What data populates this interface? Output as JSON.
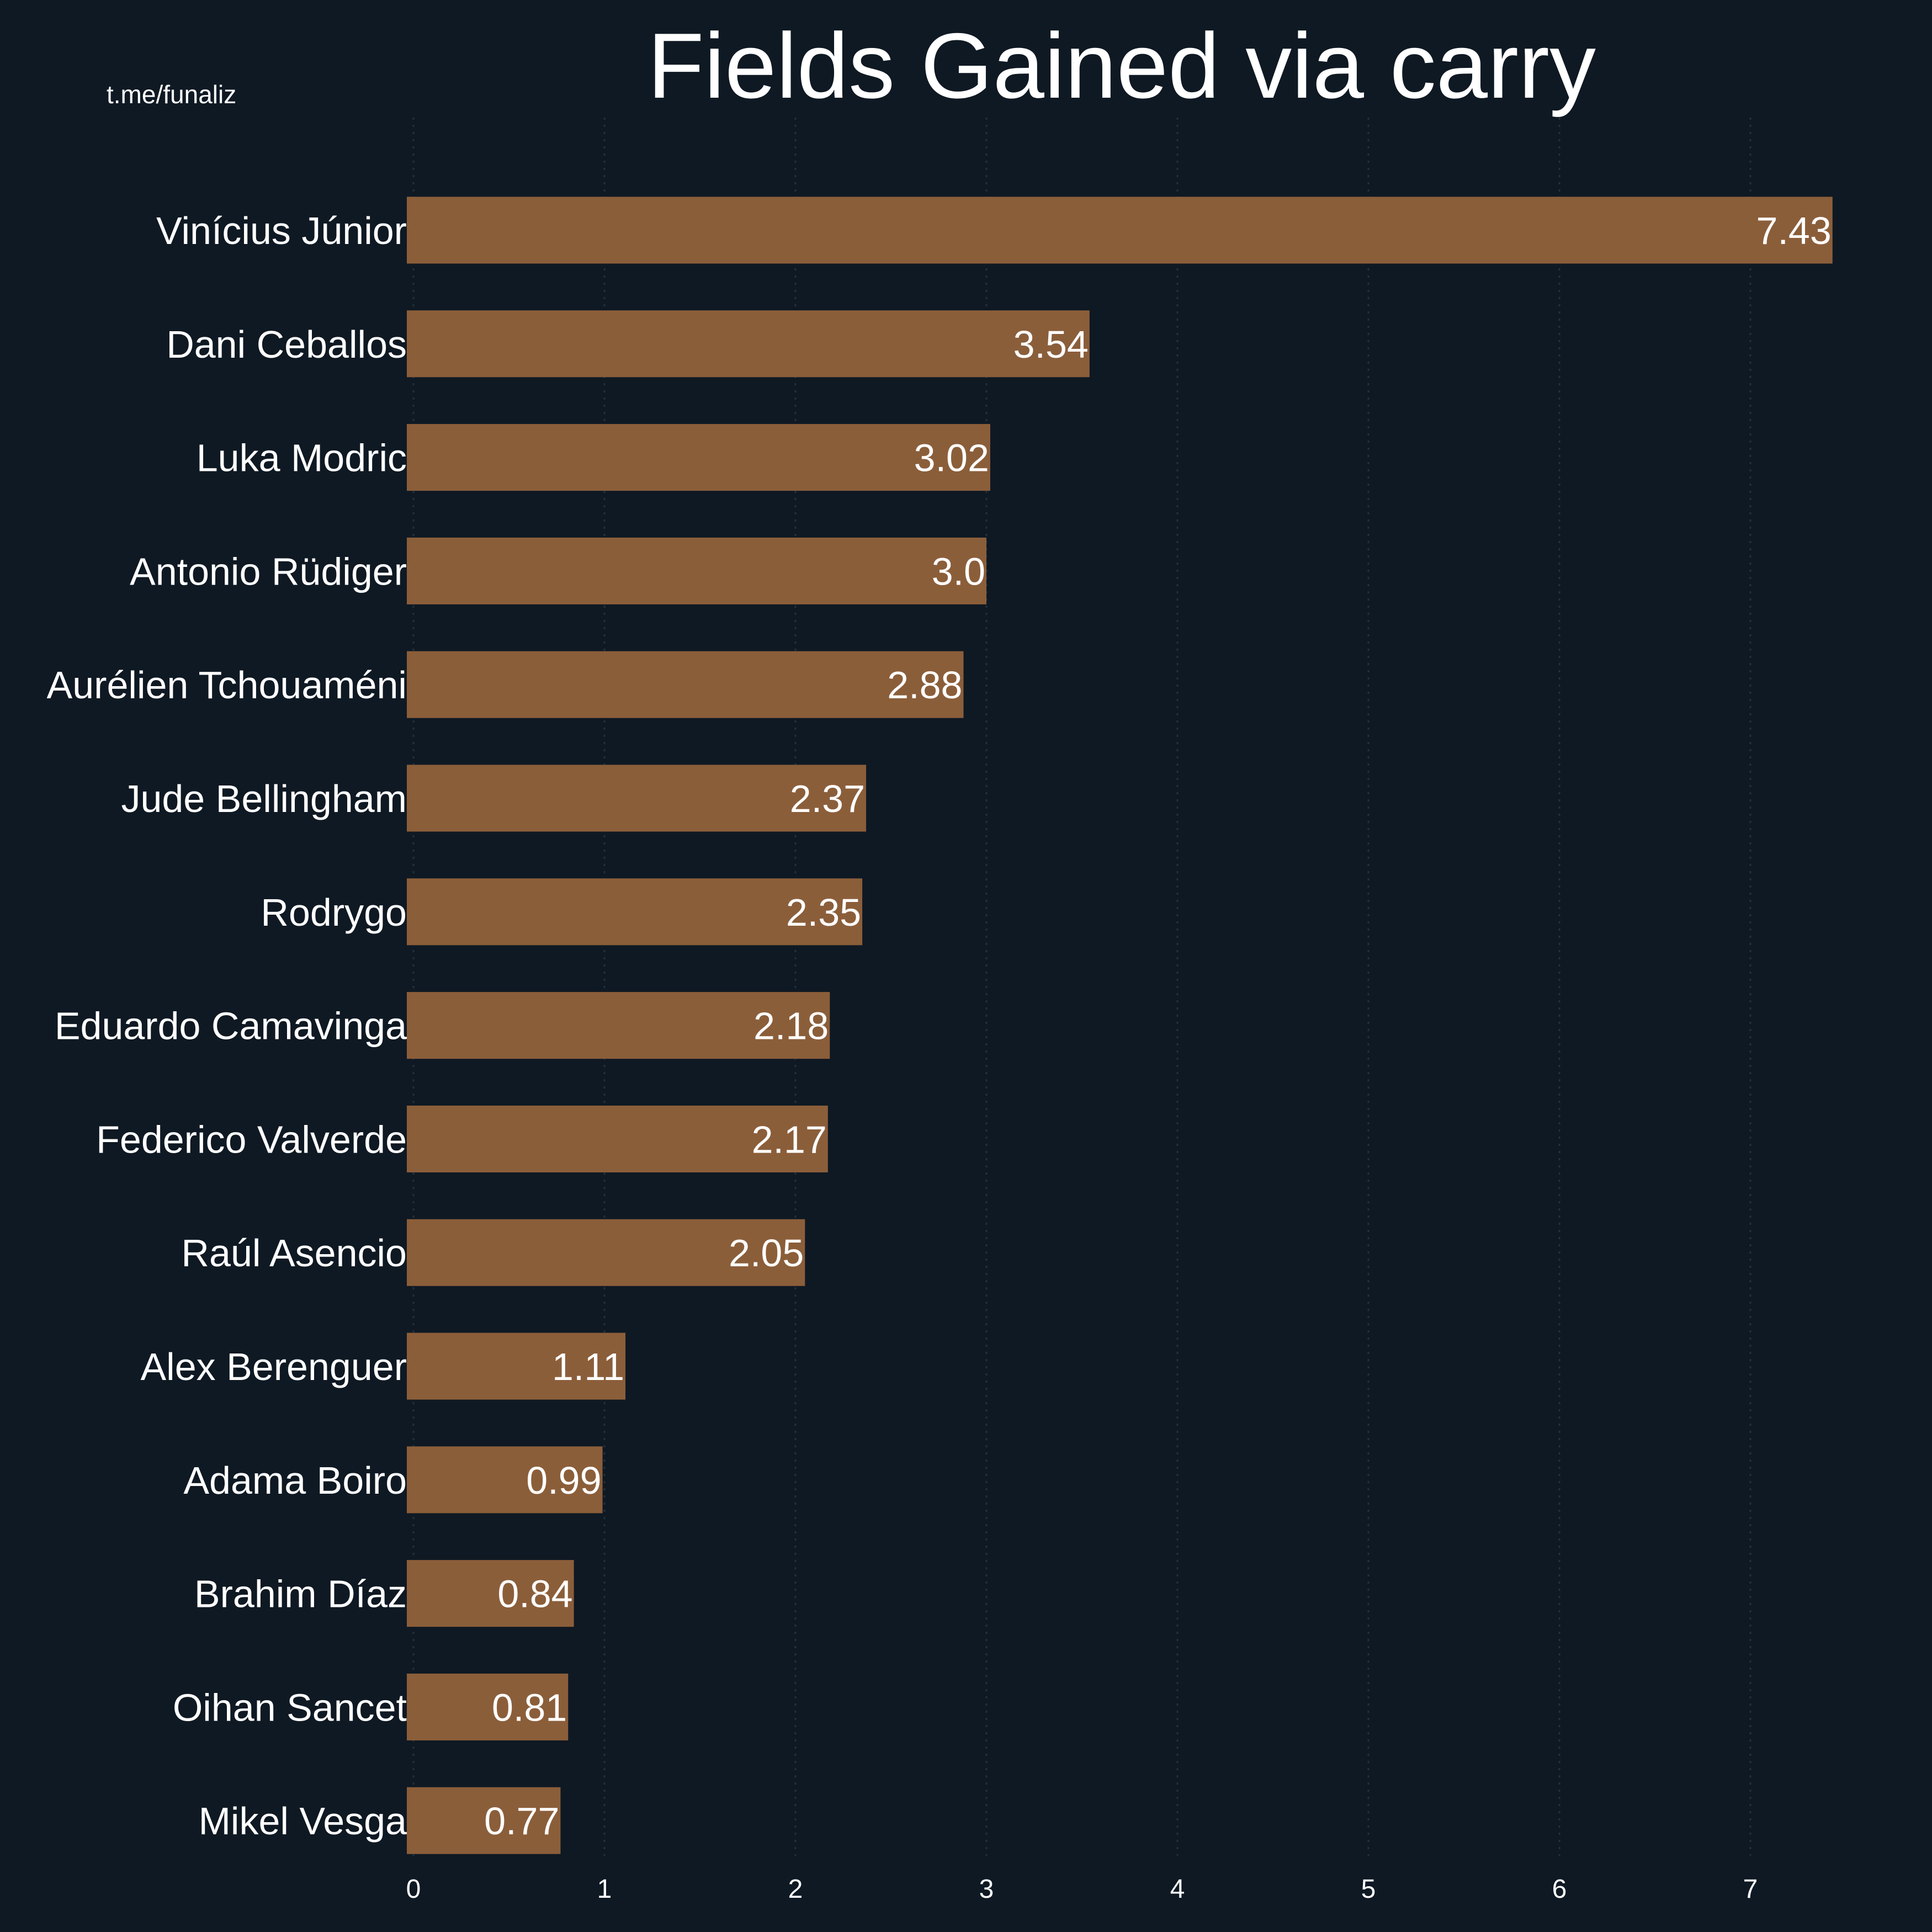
{
  "watermark": "t.me/funaliz",
  "colors": {
    "background": "#0f1923",
    "bar": "#8b5e3a",
    "text": "#ffffff",
    "grid": "#25303c"
  },
  "chart_data": {
    "type": "bar",
    "orientation": "horizontal",
    "title": "Fields Gained via carry",
    "xlabel": "",
    "ylabel": "",
    "xlim": [
      0,
      7.6
    ],
    "xticks": [
      0,
      1,
      2,
      3,
      4,
      5,
      6,
      7
    ],
    "xtick_labels": [
      "0",
      "1",
      "2",
      "3",
      "4",
      "5",
      "6",
      "7"
    ],
    "grid": "vertical dotted",
    "categories": [
      "Vinícius Júnior",
      "Dani Ceballos",
      "Luka Modric",
      "Antonio Rüdiger",
      "Aurélien Tchouaméni",
      "Jude Bellingham",
      "Rodrygo",
      "Eduardo Camavinga",
      "Federico Valverde",
      "Raúl Asencio",
      "Alex Berenguer",
      "Adama Boiro",
      "Brahim Díaz",
      "Oihan Sancet",
      "Mikel Vesga"
    ],
    "values": [
      7.43,
      3.54,
      3.02,
      3.0,
      2.88,
      2.37,
      2.35,
      2.18,
      2.17,
      2.05,
      1.11,
      0.99,
      0.84,
      0.81,
      0.77
    ],
    "value_labels": [
      "7.43",
      "3.54",
      "3.02",
      "3.0",
      "2.88",
      "2.37",
      "2.35",
      "2.18",
      "2.17",
      "2.05",
      "1.11",
      "0.99",
      "0.84",
      "0.81",
      "0.77"
    ]
  }
}
